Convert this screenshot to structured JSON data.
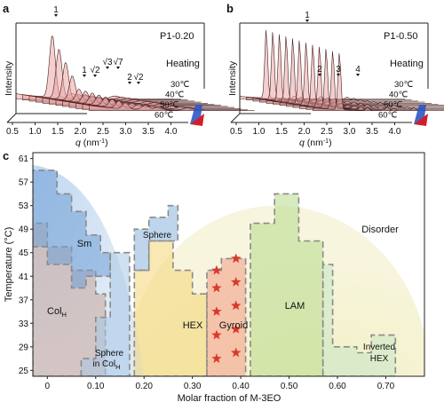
{
  "colors": {
    "sm": "#6f9fd6",
    "colh": "#c9a59a",
    "sphere_colh": "#a7c7e6",
    "sphere": "#88b2da",
    "hex": "#f4d576",
    "gyroid": "#f29a86",
    "lam": "#b8db8c",
    "inverted_hex": "#c6e6c8",
    "disorder_bg": "#f2efc6",
    "curve_fill": "#e9a7a7",
    "curve_line": "#4a1e1e",
    "star": "#d93a2b",
    "arrow_blue": "#2f56c4",
    "arrow_red": "#d11f2a"
  },
  "panel_a": {
    "letter": "a",
    "tag": "P1-0.20",
    "ylabel": "Intensity",
    "heating": "Heating",
    "xlabel_var": "q",
    "xlabel_unit": " (nm",
    "xlabel_exp": "-1",
    "xlabel_close": ")",
    "xticks": [
      "0.5",
      "1.0",
      "1.5",
      "2.0",
      "2.5",
      "3.0",
      "3.5",
      "4.0"
    ],
    "temps": [
      "30℃",
      "40℃",
      "50℃",
      "60℃"
    ],
    "peaks": [
      "1",
      "1",
      "√2",
      "√3",
      "√7",
      "2",
      "√2"
    ]
  },
  "panel_b": {
    "letter": "b",
    "tag": "P1-0.50",
    "ylabel": "Intensity",
    "heating": "Heating",
    "xlabel_var": "q",
    "xlabel_unit": " (nm",
    "xlabel_exp": "-1",
    "xlabel_close": ")",
    "xticks": [
      "0.5",
      "1.0",
      "1.5",
      "2.0",
      "2.5",
      "3.0",
      "3.5",
      "4.0"
    ],
    "temps": [
      "30℃",
      "40℃",
      "50℃",
      "60℃"
    ],
    "peaks": [
      "1",
      "2",
      "3",
      "4"
    ]
  },
  "chart_data": {
    "type": "phase-diagram",
    "panel_letter": "c",
    "xlabel": "Molar fraction of M-3EO",
    "ylabel": "Temperature (°C)",
    "xlim": [
      -0.03,
      0.78
    ],
    "ylim": [
      24,
      62
    ],
    "xticks": [
      "0",
      "0.10",
      "0.20",
      "0.30",
      "0.40",
      "0.50",
      "0.60",
      "0.70"
    ],
    "xtick_values": [
      0,
      0.1,
      0.2,
      0.3,
      0.4,
      0.5,
      0.6,
      0.7
    ],
    "yticks": [
      25,
      29,
      33,
      37,
      41,
      45,
      49,
      53,
      57,
      61
    ],
    "phases": [
      {
        "key": "sm",
        "label": "Sm",
        "color": "sm",
        "x_range": [
          -0.03,
          0.13
        ],
        "t_range": [
          39,
          59
        ]
      },
      {
        "key": "colh",
        "label_main": "Col",
        "label_sub": "H",
        "color": "colh",
        "x_range": [
          -0.03,
          0.12
        ],
        "t_range": [
          25,
          50
        ]
      },
      {
        "key": "sphere_colh",
        "label": "Sphere",
        "label2_main": "in Col",
        "label2_sub": "H",
        "color": "sphere_colh",
        "x_range": [
          0.07,
          0.17
        ],
        "t_range": [
          25,
          45
        ]
      },
      {
        "key": "sphere",
        "label": "Sphere",
        "color": "sphere",
        "x_range": [
          0.18,
          0.25
        ],
        "t_range": [
          41,
          53
        ]
      },
      {
        "key": "hex",
        "label": "HEX",
        "color": "hex",
        "x_range": [
          0.18,
          0.32
        ],
        "t_range": [
          25,
          48
        ]
      },
      {
        "key": "gyroid",
        "label": "Gyroid",
        "color": "gyroid",
        "x_range": [
          0.33,
          0.42
        ],
        "t_range": [
          25,
          45
        ]
      },
      {
        "key": "lam",
        "label": "LAM",
        "color": "lam",
        "x_range": [
          0.42,
          0.56
        ],
        "t_range": [
          25,
          55
        ]
      },
      {
        "key": "inverted_hex",
        "label": "Inverted",
        "label2": "HEX",
        "color": "inverted_hex",
        "x_range": [
          0.58,
          0.74
        ],
        "t_range": [
          25,
          31
        ]
      },
      {
        "key": "disorder",
        "label": "Disorder",
        "color": "disorder_bg",
        "x_range": [
          0.2,
          0.78
        ],
        "t_range": [
          25,
          61
        ]
      }
    ],
    "gyroid_stars": [
      [
        0.35,
        42
      ],
      [
        0.39,
        44
      ],
      [
        0.35,
        39
      ],
      [
        0.39,
        40
      ],
      [
        0.35,
        35
      ],
      [
        0.39,
        36
      ],
      [
        0.35,
        31
      ],
      [
        0.39,
        32
      ],
      [
        0.35,
        27
      ],
      [
        0.39,
        28
      ]
    ]
  }
}
